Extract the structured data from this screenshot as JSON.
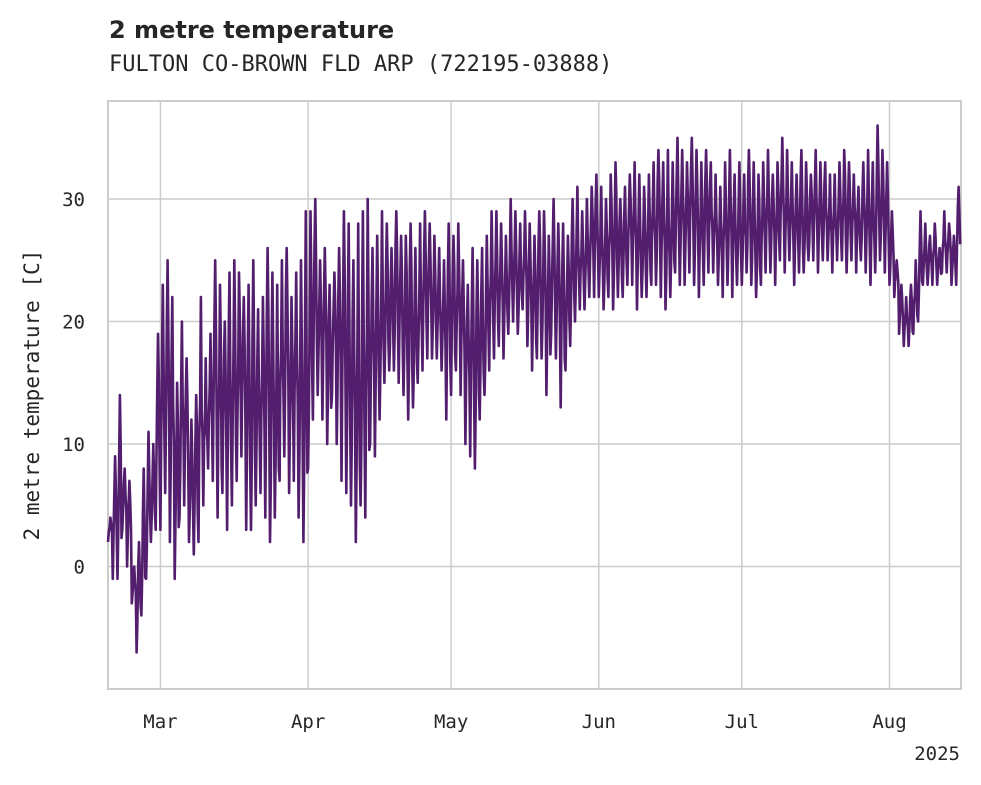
{
  "chart_data": {
    "type": "line",
    "title": "2 metre temperature",
    "subtitle": "FULTON CO-BROWN FLD ARP (722195-03888)",
    "xlabel": "",
    "ylabel": "2 metre temperature [C]",
    "year_label": "2025",
    "xlim": [
      "2025-02-18",
      "2025-08-16"
    ],
    "ylim": [
      -10,
      38
    ],
    "grid": true,
    "legend": "none",
    "line_color": "#531e6e",
    "x_ticks": [
      {
        "date": "2025-03-01",
        "label": "Mar"
      },
      {
        "date": "2025-04-01",
        "label": "Apr"
      },
      {
        "date": "2025-05-01",
        "label": "May"
      },
      {
        "date": "2025-06-01",
        "label": "Jun"
      },
      {
        "date": "2025-07-01",
        "label": "Jul"
      },
      {
        "date": "2025-08-01",
        "label": "Aug"
      }
    ],
    "y_ticks": [
      {
        "value": 0,
        "label": "0"
      },
      {
        "value": 10,
        "label": "10"
      },
      {
        "value": 20,
        "label": "20"
      },
      {
        "value": 30,
        "label": "30"
      }
    ],
    "series": [
      {
        "x": [
          "2025-02-18",
          "2025-02-19",
          "2025-02-20",
          "2025-02-21",
          "2025-02-22",
          "2025-02-23",
          "2025-02-24",
          "2025-02-25",
          "2025-02-26",
          "2025-02-27",
          "2025-02-28",
          "2025-03-01",
          "2025-03-02",
          "2025-03-03",
          "2025-03-04",
          "2025-03-05",
          "2025-03-06",
          "2025-03-07",
          "2025-03-08",
          "2025-03-09",
          "2025-03-10",
          "2025-03-11",
          "2025-03-12",
          "2025-03-13",
          "2025-03-14",
          "2025-03-15",
          "2025-03-16",
          "2025-03-17",
          "2025-03-18",
          "2025-03-19",
          "2025-03-20",
          "2025-03-21",
          "2025-03-22",
          "2025-03-23",
          "2025-03-24",
          "2025-03-25",
          "2025-03-26",
          "2025-03-27",
          "2025-03-28",
          "2025-03-29",
          "2025-03-30",
          "2025-03-31",
          "2025-04-01",
          "2025-04-02",
          "2025-04-03",
          "2025-04-04",
          "2025-04-05",
          "2025-04-06",
          "2025-04-07",
          "2025-04-08",
          "2025-04-09",
          "2025-04-10",
          "2025-04-11",
          "2025-04-12",
          "2025-04-13",
          "2025-04-14",
          "2025-04-15",
          "2025-04-16",
          "2025-04-17",
          "2025-04-18",
          "2025-04-19",
          "2025-04-20",
          "2025-04-21",
          "2025-04-22",
          "2025-04-23",
          "2025-04-24",
          "2025-04-25",
          "2025-04-26",
          "2025-04-27",
          "2025-04-28",
          "2025-04-29",
          "2025-04-30",
          "2025-05-01",
          "2025-05-02",
          "2025-05-03",
          "2025-05-04",
          "2025-05-05",
          "2025-05-06",
          "2025-05-07",
          "2025-05-08",
          "2025-05-09",
          "2025-05-10",
          "2025-05-11",
          "2025-05-12",
          "2025-05-13",
          "2025-05-14",
          "2025-05-15",
          "2025-05-16",
          "2025-05-17",
          "2025-05-18",
          "2025-05-19",
          "2025-05-20",
          "2025-05-21",
          "2025-05-22",
          "2025-05-23",
          "2025-05-24",
          "2025-05-25",
          "2025-05-26",
          "2025-05-27",
          "2025-05-28",
          "2025-05-29",
          "2025-05-30",
          "2025-05-31",
          "2025-06-01",
          "2025-06-02",
          "2025-06-03",
          "2025-06-04",
          "2025-06-05",
          "2025-06-06",
          "2025-06-07",
          "2025-06-08",
          "2025-06-09",
          "2025-06-10",
          "2025-06-11",
          "2025-06-12",
          "2025-06-13",
          "2025-06-14",
          "2025-06-15",
          "2025-06-16",
          "2025-06-17",
          "2025-06-18",
          "2025-06-19",
          "2025-06-20",
          "2025-06-21",
          "2025-06-22",
          "2025-06-23",
          "2025-06-24",
          "2025-06-25",
          "2025-06-26",
          "2025-06-27",
          "2025-06-28",
          "2025-06-29",
          "2025-06-30",
          "2025-07-01",
          "2025-07-02",
          "2025-07-03",
          "2025-07-04",
          "2025-07-05",
          "2025-07-06",
          "2025-07-07",
          "2025-07-08",
          "2025-07-09",
          "2025-07-10",
          "2025-07-11",
          "2025-07-12",
          "2025-07-13",
          "2025-07-14",
          "2025-07-15",
          "2025-07-16",
          "2025-07-17",
          "2025-07-18",
          "2025-07-19",
          "2025-07-20",
          "2025-07-21",
          "2025-07-22",
          "2025-07-23",
          "2025-07-24",
          "2025-07-25",
          "2025-07-26",
          "2025-07-27",
          "2025-07-28",
          "2025-07-29",
          "2025-07-30",
          "2025-07-31",
          "2025-08-01",
          "2025-08-02",
          "2025-08-03",
          "2025-08-04",
          "2025-08-05",
          "2025-08-06",
          "2025-08-07",
          "2025-08-08",
          "2025-08-09",
          "2025-08-10",
          "2025-08-11",
          "2025-08-12",
          "2025-08-13",
          "2025-08-14",
          "2025-08-15"
        ],
        "min": [
          2,
          -1,
          -1,
          3,
          0,
          -3,
          -7,
          -4,
          -1,
          2,
          3,
          3,
          6,
          2,
          -1,
          4,
          5,
          2,
          1,
          2,
          5,
          8,
          7,
          4,
          6,
          3,
          5,
          7,
          9,
          3,
          3,
          5,
          6,
          4,
          2,
          4,
          7,
          9,
          6,
          7,
          4,
          2,
          8,
          12,
          14,
          12,
          10,
          14,
          10,
          7,
          6,
          5,
          2,
          5,
          4,
          10,
          9,
          12,
          15,
          16,
          16,
          15,
          14,
          12,
          13,
          15,
          16,
          17,
          17,
          17,
          16,
          12,
          14,
          16,
          14,
          10,
          9,
          8,
          12,
          14,
          16,
          17,
          18,
          17,
          19,
          20,
          19,
          21,
          18,
          16,
          17,
          17,
          14,
          19,
          17,
          13,
          16,
          18,
          20,
          21,
          21,
          22,
          22,
          22,
          21,
          22,
          21,
          22,
          22,
          23,
          23,
          21,
          22,
          22,
          23,
          23,
          22,
          21,
          22,
          24,
          23,
          23,
          24,
          23,
          22,
          23,
          24,
          24,
          23,
          22,
          23,
          22,
          23,
          23,
          24,
          23,
          22,
          23,
          24,
          24,
          23,
          25,
          24,
          25,
          23,
          24,
          24,
          25,
          25,
          24,
          25,
          25,
          24,
          25,
          25,
          24,
          25,
          24,
          25,
          24,
          23,
          24,
          25,
          24,
          23,
          22,
          19,
          18,
          18,
          19,
          20,
          23,
          23,
          23,
          23,
          24,
          24,
          23,
          23,
          24,
          24
        ],
        "max": [
          4,
          9,
          14,
          8,
          7,
          0,
          2,
          8,
          11,
          10,
          19,
          23,
          25,
          22,
          15,
          20,
          17,
          12,
          14,
          22,
          17,
          19,
          25,
          23,
          20,
          24,
          25,
          24,
          22,
          23,
          25,
          21,
          22,
          26,
          24,
          23,
          25,
          26,
          22,
          24,
          25,
          29,
          29,
          30,
          25,
          26,
          23,
          24,
          26,
          29,
          28,
          25,
          28,
          29,
          30,
          26,
          27,
          29,
          28,
          26,
          29,
          27,
          27,
          28,
          26,
          28,
          29,
          28,
          27,
          26,
          25,
          28,
          27,
          28,
          25,
          23,
          26,
          25,
          26,
          27,
          29,
          29,
          28,
          27,
          30,
          29,
          28,
          29,
          28,
          27,
          29,
          29,
          27,
          30,
          28,
          28,
          27,
          30,
          31,
          29,
          30,
          31,
          32,
          31,
          30,
          32,
          33,
          30,
          31,
          32,
          33,
          32,
          31,
          32,
          33,
          34,
          33,
          34,
          33,
          35,
          34,
          33,
          35,
          34,
          33,
          34,
          33,
          32,
          31,
          33,
          34,
          32,
          33,
          32,
          34,
          33,
          32,
          33,
          34,
          32,
          33,
          35,
          34,
          33,
          32,
          34,
          33,
          32,
          34,
          33,
          33,
          32,
          32,
          33,
          34,
          33,
          32,
          31,
          33,
          34,
          33,
          36,
          34,
          33,
          29,
          25,
          23,
          22,
          23,
          25,
          29,
          28,
          27,
          28,
          26,
          29,
          28,
          27,
          31,
          30,
          28
        ]
      }
    ]
  }
}
